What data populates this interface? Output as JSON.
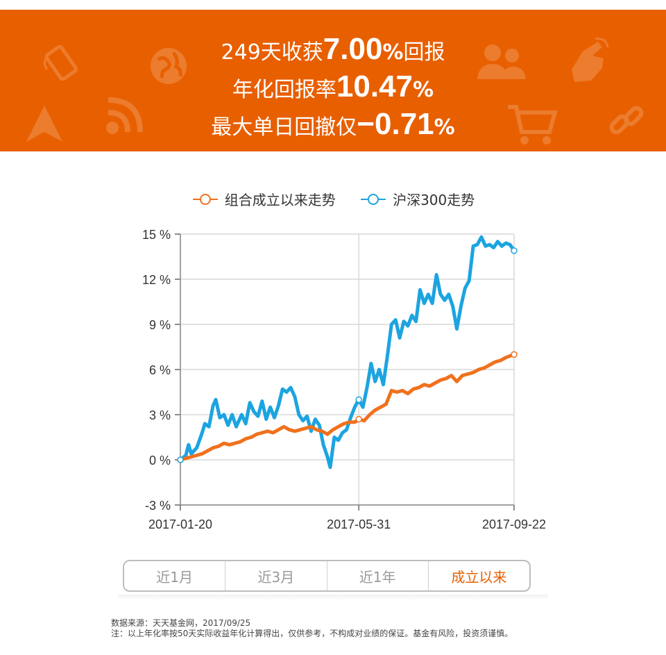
{
  "banner": {
    "line1_text": "249天收获",
    "line1_value": "7.00",
    "line1_unit": "%",
    "line1_suffix": "回报",
    "line2_text": "年化回报率",
    "line2_value": "10.47",
    "line2_unit": "%",
    "line3_text": "最大单日回撤仅",
    "line3_value": "−0.71",
    "line3_unit": "%",
    "background_color": "#e85f00",
    "decor_icons": [
      "phone-icon",
      "globe-icon",
      "users-icon",
      "pointer-hand-icon",
      "navigation-arrow-icon",
      "rss-icon",
      "cart-icon",
      "link-icon"
    ]
  },
  "legend": {
    "portfolio_label": "组合成立以来走势",
    "index_label": "沪深300走势"
  },
  "chart_data": {
    "type": "line",
    "xlabel": "",
    "ylabel": "",
    "x_ticks": [
      "2017-01-20",
      "2017-05-31",
      "2017-09-22"
    ],
    "y_ticks": [
      "-3 %",
      "0 %",
      "3 %",
      "6 %",
      "9 %",
      "12 %",
      "15 %"
    ],
    "ylim": [
      -3,
      15
    ],
    "x_range": [
      "2017-01-20",
      "2017-09-22"
    ],
    "grid": true,
    "legend_position": "top",
    "series": [
      {
        "name": "组合成立以来走势",
        "color": "#f0711d",
        "points": [
          [
            "2017-01-20",
            0.0
          ],
          [
            "2017-01-24",
            0.1
          ],
          [
            "2017-01-28",
            0.2
          ],
          [
            "2017-02-01",
            0.3
          ],
          [
            "2017-02-05",
            0.4
          ],
          [
            "2017-02-09",
            0.6
          ],
          [
            "2017-02-13",
            0.8
          ],
          [
            "2017-02-17",
            0.9
          ],
          [
            "2017-02-21",
            1.1
          ],
          [
            "2017-02-25",
            1.0
          ],
          [
            "2017-03-01",
            1.1
          ],
          [
            "2017-03-05",
            1.2
          ],
          [
            "2017-03-09",
            1.4
          ],
          [
            "2017-03-13",
            1.5
          ],
          [
            "2017-03-17",
            1.7
          ],
          [
            "2017-03-21",
            1.8
          ],
          [
            "2017-03-25",
            1.9
          ],
          [
            "2017-03-29",
            1.8
          ],
          [
            "2017-04-02",
            2.0
          ],
          [
            "2017-04-06",
            2.2
          ],
          [
            "2017-04-10",
            2.0
          ],
          [
            "2017-04-14",
            1.9
          ],
          [
            "2017-04-18",
            2.0
          ],
          [
            "2017-04-22",
            2.1
          ],
          [
            "2017-04-26",
            2.2
          ],
          [
            "2017-04-30",
            2.0
          ],
          [
            "2017-05-04",
            1.9
          ],
          [
            "2017-05-08",
            1.7
          ],
          [
            "2017-05-12",
            2.0
          ],
          [
            "2017-05-16",
            2.2
          ],
          [
            "2017-05-20",
            2.4
          ],
          [
            "2017-05-24",
            2.5
          ],
          [
            "2017-05-28",
            2.5
          ],
          [
            "2017-05-31",
            2.7
          ],
          [
            "2017-06-04",
            2.6
          ],
          [
            "2017-06-08",
            3.0
          ],
          [
            "2017-06-12",
            3.3
          ],
          [
            "2017-06-16",
            3.5
          ],
          [
            "2017-06-20",
            3.7
          ],
          [
            "2017-06-24",
            4.6
          ],
          [
            "2017-06-28",
            4.5
          ],
          [
            "2017-07-02",
            4.6
          ],
          [
            "2017-07-06",
            4.4
          ],
          [
            "2017-07-10",
            4.7
          ],
          [
            "2017-07-14",
            4.8
          ],
          [
            "2017-07-18",
            5.0
          ],
          [
            "2017-07-22",
            4.9
          ],
          [
            "2017-07-26",
            5.1
          ],
          [
            "2017-07-30",
            5.3
          ],
          [
            "2017-08-03",
            5.4
          ],
          [
            "2017-08-07",
            5.6
          ],
          [
            "2017-08-11",
            5.2
          ],
          [
            "2017-08-15",
            5.6
          ],
          [
            "2017-08-19",
            5.7
          ],
          [
            "2017-08-23",
            5.8
          ],
          [
            "2017-08-27",
            6.0
          ],
          [
            "2017-08-31",
            6.1
          ],
          [
            "2017-09-04",
            6.3
          ],
          [
            "2017-09-08",
            6.5
          ],
          [
            "2017-09-12",
            6.6
          ],
          [
            "2017-09-16",
            6.8
          ],
          [
            "2017-09-22",
            7.0
          ]
        ]
      },
      {
        "name": "沪深300走势",
        "color": "#1ca4e0",
        "points": [
          [
            "2017-01-20",
            0.0
          ],
          [
            "2017-01-24",
            0.3
          ],
          [
            "2017-01-26",
            1.0
          ],
          [
            "2017-01-28",
            0.4
          ],
          [
            "2017-02-01",
            0.8
          ],
          [
            "2017-02-05",
            1.8
          ],
          [
            "2017-02-07",
            2.4
          ],
          [
            "2017-02-10",
            2.2
          ],
          [
            "2017-02-13",
            3.6
          ],
          [
            "2017-02-15",
            4.0
          ],
          [
            "2017-02-18",
            2.8
          ],
          [
            "2017-02-21",
            3.0
          ],
          [
            "2017-02-24",
            2.3
          ],
          [
            "2017-02-27",
            3.0
          ],
          [
            "2017-03-02",
            2.2
          ],
          [
            "2017-03-06",
            3.0
          ],
          [
            "2017-03-09",
            2.4
          ],
          [
            "2017-03-12",
            3.8
          ],
          [
            "2017-03-15",
            3.2
          ],
          [
            "2017-03-18",
            2.9
          ],
          [
            "2017-03-21",
            3.9
          ],
          [
            "2017-03-24",
            2.7
          ],
          [
            "2017-03-27",
            3.5
          ],
          [
            "2017-03-30",
            2.8
          ],
          [
            "2017-04-02",
            3.6
          ],
          [
            "2017-04-05",
            4.7
          ],
          [
            "2017-04-08",
            4.5
          ],
          [
            "2017-04-11",
            4.8
          ],
          [
            "2017-04-14",
            4.2
          ],
          [
            "2017-04-17",
            3.0
          ],
          [
            "2017-04-20",
            2.6
          ],
          [
            "2017-04-23",
            2.9
          ],
          [
            "2017-04-26",
            1.9
          ],
          [
            "2017-04-29",
            2.7
          ],
          [
            "2017-05-02",
            2.3
          ],
          [
            "2017-05-05",
            1.0
          ],
          [
            "2017-05-08",
            0.2
          ],
          [
            "2017-05-10",
            -0.5
          ],
          [
            "2017-05-13",
            1.5
          ],
          [
            "2017-05-16",
            1.3
          ],
          [
            "2017-05-19",
            1.8
          ],
          [
            "2017-05-22",
            2.0
          ],
          [
            "2017-05-25",
            2.8
          ],
          [
            "2017-05-28",
            3.5
          ],
          [
            "2017-05-31",
            4.0
          ],
          [
            "2017-06-03",
            3.5
          ],
          [
            "2017-06-06",
            4.8
          ],
          [
            "2017-06-09",
            6.4
          ],
          [
            "2017-06-12",
            5.2
          ],
          [
            "2017-06-15",
            6.0
          ],
          [
            "2017-06-18",
            5.0
          ],
          [
            "2017-06-21",
            6.9
          ],
          [
            "2017-06-24",
            9.0
          ],
          [
            "2017-06-27",
            9.3
          ],
          [
            "2017-06-30",
            8.1
          ],
          [
            "2017-07-03",
            9.2
          ],
          [
            "2017-07-06",
            8.9
          ],
          [
            "2017-07-09",
            9.6
          ],
          [
            "2017-07-12",
            9.2
          ],
          [
            "2017-07-15",
            11.3
          ],
          [
            "2017-07-18",
            10.4
          ],
          [
            "2017-07-21",
            11.0
          ],
          [
            "2017-07-24",
            10.4
          ],
          [
            "2017-07-27",
            12.3
          ],
          [
            "2017-07-30",
            11.0
          ],
          [
            "2017-08-02",
            10.6
          ],
          [
            "2017-08-05",
            11.0
          ],
          [
            "2017-08-08",
            10.2
          ],
          [
            "2017-08-11",
            8.7
          ],
          [
            "2017-08-14",
            10.2
          ],
          [
            "2017-08-17",
            11.4
          ],
          [
            "2017-08-20",
            11.9
          ],
          [
            "2017-08-23",
            14.2
          ],
          [
            "2017-08-26",
            14.3
          ],
          [
            "2017-08-29",
            14.8
          ],
          [
            "2017-09-01",
            14.2
          ],
          [
            "2017-09-04",
            14.3
          ],
          [
            "2017-09-07",
            14.1
          ],
          [
            "2017-09-10",
            14.5
          ],
          [
            "2017-09-13",
            14.2
          ],
          [
            "2017-09-16",
            14.4
          ],
          [
            "2017-09-19",
            14.3
          ],
          [
            "2017-09-22",
            13.9
          ]
        ]
      }
    ],
    "markers_at": [
      "2017-01-20",
      "2017-05-31",
      "2017-09-22"
    ]
  },
  "tabs": {
    "items": [
      "近1月",
      "近3月",
      "近1年",
      "成立以来"
    ],
    "active_index": 3
  },
  "footer": {
    "source": "数据来源：天天基金网，2017/09/25",
    "note": "注：以上年化率按50天实际收益年化计算得出，仅供参考，不构成对业绩的保证。基金有风险，投资须谨慎。"
  }
}
